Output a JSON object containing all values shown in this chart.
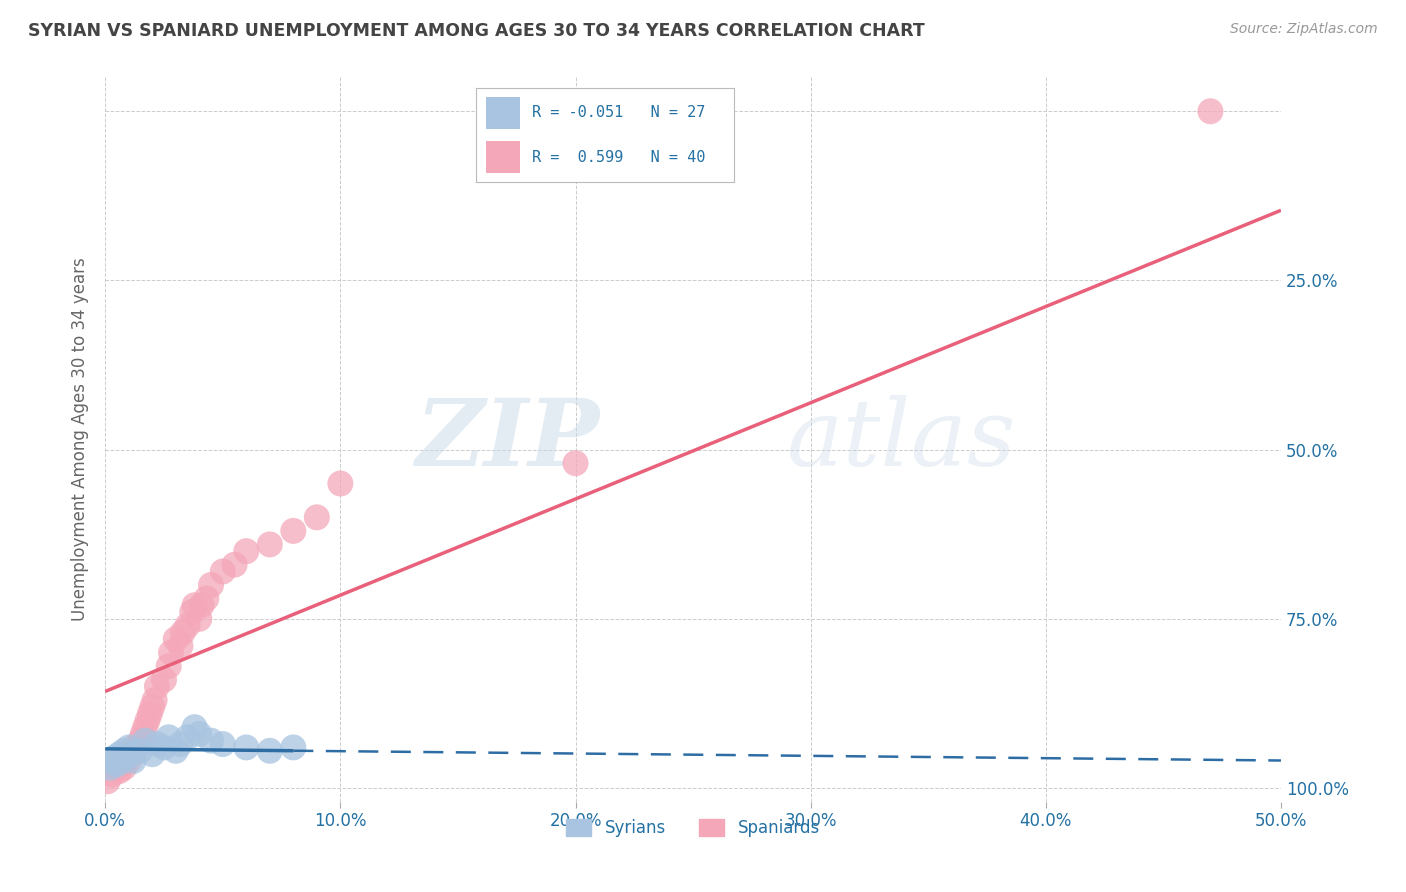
{
  "title": "SYRIAN VS SPANIARD UNEMPLOYMENT AMONG AGES 30 TO 34 YEARS CORRELATION CHART",
  "source": "Source: ZipAtlas.com",
  "ylabel": "Unemployment Among Ages 30 to 34 years",
  "xlim": [
    0.0,
    0.5
  ],
  "ylim": [
    -0.02,
    1.05
  ],
  "xticks": [
    0.0,
    0.1,
    0.2,
    0.3,
    0.4,
    0.5
  ],
  "yticks": [
    0.0,
    0.25,
    0.5,
    0.75,
    1.0
  ],
  "xtick_labels": [
    "0.0%",
    "10.0%",
    "20.0%",
    "30.0%",
    "40.0%",
    "50.0%"
  ],
  "right_ytick_labels": [
    "100.0%",
    "75.0%",
    "50.0%",
    "25.0%",
    ""
  ],
  "syrian_color": "#a8c4e0",
  "spaniard_color": "#f4a7b9",
  "syrian_line_color": "#2e6da4",
  "spaniard_line_color": "#e8607a",
  "R_syrian": -0.051,
  "N_syrian": 27,
  "R_spaniard": 0.599,
  "N_spaniard": 40,
  "legend_label_syrian": "Syrians",
  "legend_label_spaniard": "Spaniards",
  "watermark_zip": "ZIP",
  "watermark_atlas": "atlas",
  "background_color": "#ffffff",
  "grid_color": "#cccccc",
  "title_color": "#444444",
  "axis_label_color": "#2471a3",
  "syrian_x": [
    0.002,
    0.003,
    0.004,
    0.005,
    0.006,
    0.007,
    0.008,
    0.009,
    0.01,
    0.011,
    0.012,
    0.015,
    0.017,
    0.02,
    0.022,
    0.025,
    0.027,
    0.03,
    0.032,
    0.035,
    0.038,
    0.04,
    0.045,
    0.05,
    0.06,
    0.07,
    0.08
  ],
  "syrian_y": [
    0.03,
    0.04,
    0.045,
    0.035,
    0.05,
    0.04,
    0.055,
    0.045,
    0.06,
    0.05,
    0.04,
    0.055,
    0.07,
    0.05,
    0.065,
    0.06,
    0.075,
    0.055,
    0.065,
    0.075,
    0.09,
    0.08,
    0.07,
    0.065,
    0.06,
    0.055,
    0.06
  ],
  "spaniard_x": [
    0.001,
    0.003,
    0.005,
    0.006,
    0.007,
    0.008,
    0.01,
    0.011,
    0.012,
    0.013,
    0.015,
    0.016,
    0.017,
    0.018,
    0.019,
    0.02,
    0.021,
    0.022,
    0.025,
    0.027,
    0.028,
    0.03,
    0.032,
    0.033,
    0.035,
    0.037,
    0.038,
    0.04,
    0.041,
    0.043,
    0.045,
    0.05,
    0.055,
    0.06,
    0.07,
    0.08,
    0.09,
    0.1,
    0.2,
    0.47
  ],
  "spaniard_y": [
    0.01,
    0.02,
    0.03,
    0.025,
    0.035,
    0.03,
    0.04,
    0.05,
    0.06,
    0.055,
    0.07,
    0.08,
    0.09,
    0.1,
    0.11,
    0.12,
    0.13,
    0.15,
    0.16,
    0.18,
    0.2,
    0.22,
    0.21,
    0.23,
    0.24,
    0.26,
    0.27,
    0.25,
    0.27,
    0.28,
    0.3,
    0.32,
    0.33,
    0.35,
    0.36,
    0.38,
    0.4,
    0.45,
    0.48,
    1.0
  ]
}
